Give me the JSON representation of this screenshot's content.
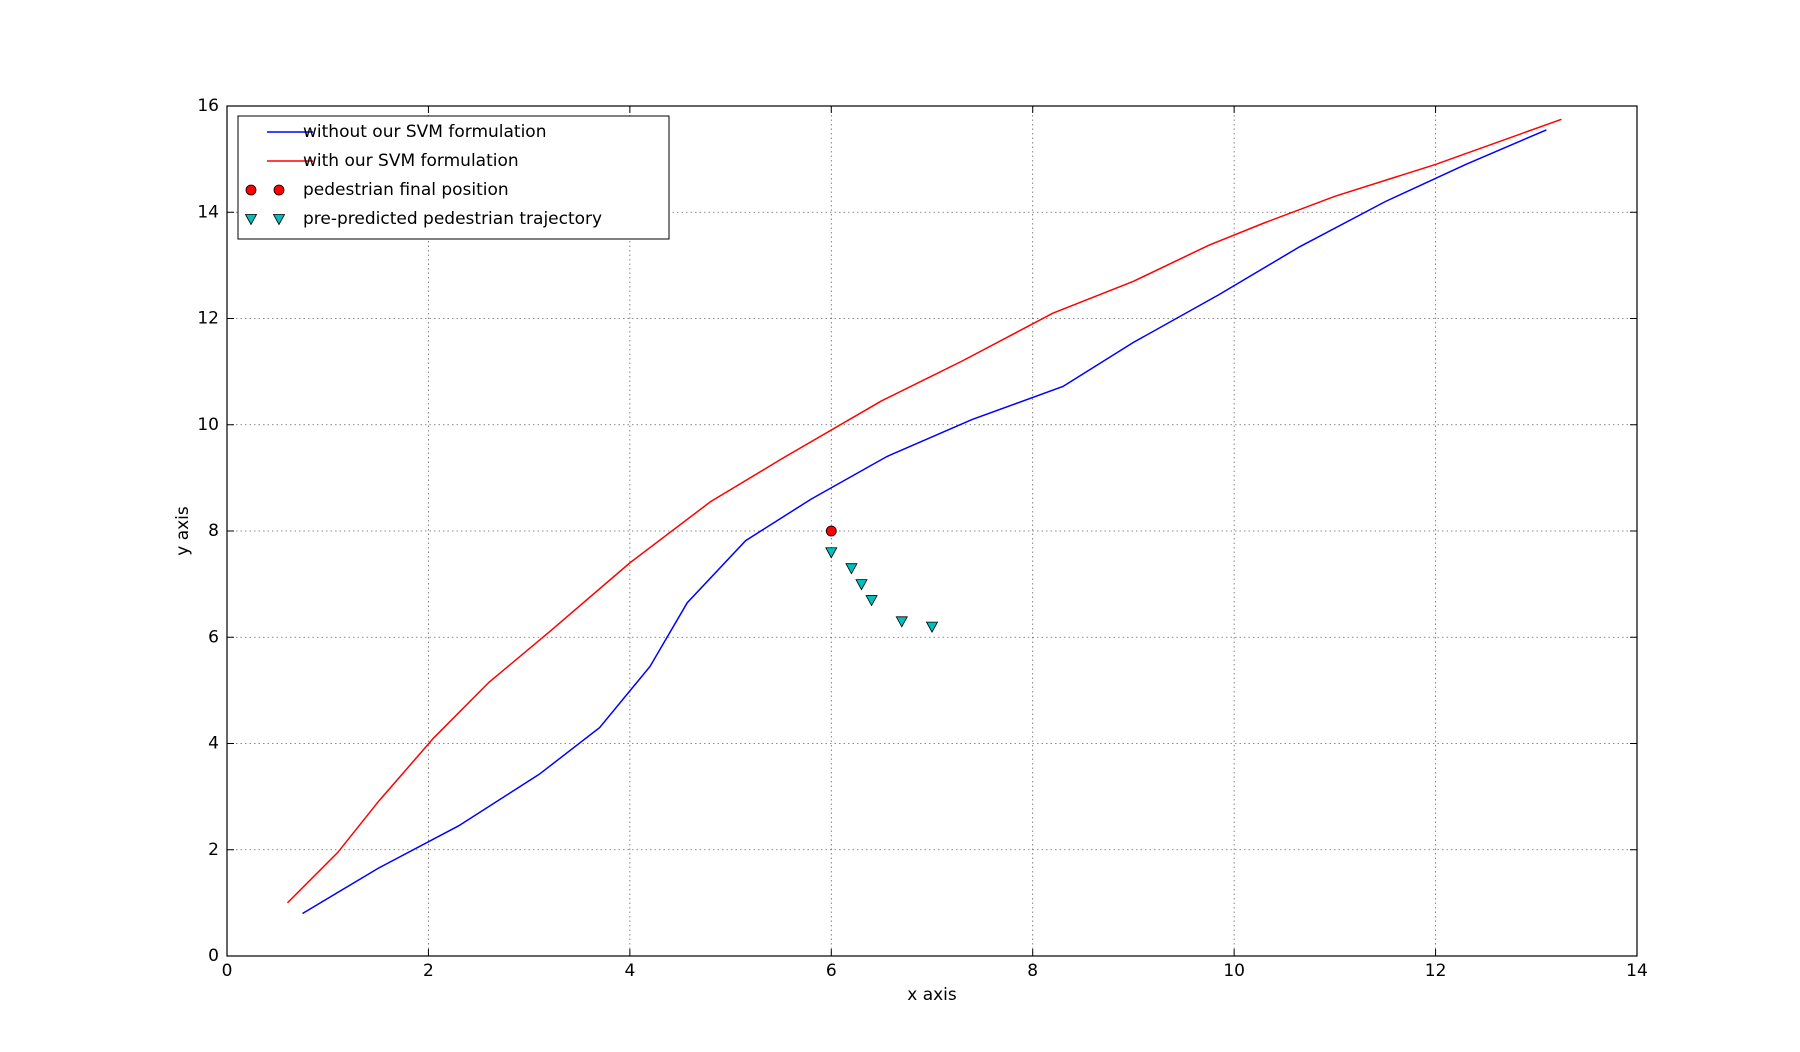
{
  "chart_data": {
    "type": "line",
    "xlabel": "x axis",
    "ylabel": "y axis",
    "xlim": [
      0,
      14
    ],
    "ylim": [
      0,
      16
    ],
    "xticks": [
      0,
      2,
      4,
      6,
      8,
      10,
      12,
      14
    ],
    "yticks": [
      0,
      2,
      4,
      6,
      8,
      10,
      12,
      14,
      16
    ],
    "grid": true,
    "legend": "upper left",
    "series": [
      {
        "name": "without our SVM formulation",
        "color": "#0000ff",
        "style": "line",
        "x": [
          0.75,
          1.5,
          2.3,
          3.1,
          3.7,
          4.2,
          4.57,
          5.15,
          5.8,
          6.55,
          7.4,
          8.3,
          9.0,
          9.85,
          10.65,
          11.5,
          12.3,
          13.1
        ],
        "values": [
          0.8,
          1.65,
          2.45,
          3.42,
          4.3,
          5.45,
          6.65,
          7.82,
          8.6,
          9.4,
          10.1,
          10.72,
          11.55,
          12.45,
          13.35,
          14.2,
          14.9,
          15.55
        ]
      },
      {
        "name": "with our SVM formulation",
        "color": "#ff0000",
        "style": "line",
        "x": [
          0.6,
          1.1,
          1.5,
          2.05,
          2.6,
          3.2,
          4.0,
          4.8,
          5.5,
          6.5,
          7.3,
          8.2,
          9.0,
          9.75,
          10.3,
          11.0,
          12.0,
          13.25
        ],
        "values": [
          1.0,
          1.95,
          2.9,
          4.1,
          5.15,
          6.1,
          7.4,
          8.55,
          9.35,
          10.45,
          11.2,
          12.1,
          12.7,
          13.38,
          13.8,
          14.3,
          14.9,
          15.75
        ]
      },
      {
        "name": "pedestrian final position",
        "color": "#ff0000",
        "style": "circle",
        "x": [
          6
        ],
        "values": [
          8
        ]
      },
      {
        "name": "pre-predicted pedestrian trajectory",
        "color": "#00bfbf",
        "style": "triangle-down",
        "x": [
          6,
          6.2,
          6.3,
          6.4,
          6.7,
          7.0
        ],
        "values": [
          7.6,
          7.3,
          7.0,
          6.7,
          6.3,
          6.2
        ]
      }
    ]
  }
}
